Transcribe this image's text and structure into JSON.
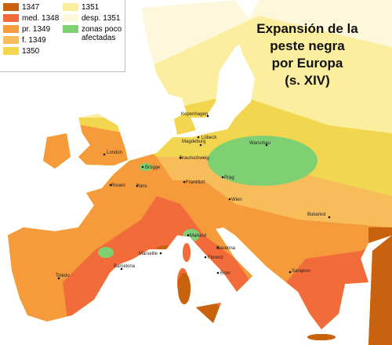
{
  "title": {
    "lines": [
      "Expansión de la",
      "peste negra",
      "por Europa",
      "(s. XIV)"
    ]
  },
  "legend": {
    "items": [
      {
        "label": "1347",
        "color": "#c8620f"
      },
      {
        "label": "med. 1348",
        "color": "#f26b3a"
      },
      {
        "label": "pr. 1349",
        "color": "#f59b3c"
      },
      {
        "label": "f. 1349",
        "color": "#f7bd5a"
      },
      {
        "label": "1350",
        "color": "#f3d64f"
      },
      {
        "label": "1351",
        "color": "#fbee9f"
      },
      {
        "label": "desp. 1351",
        "color": "#fdf8dc"
      },
      {
        "label": "zonas poco afectadas",
        "color": "#7fd073"
      }
    ]
  },
  "cities": [
    "Kopenhagen",
    "Lübeck",
    "London",
    "Magdeburg",
    "Warschau",
    "Braunschweig",
    "Brügge",
    "Rouen",
    "Paris",
    "Frankfurt",
    "Prag",
    "Wien",
    "Bukarest",
    "Mailand",
    "Marseille",
    "Ravenna",
    "Florenz",
    "Rom",
    "Barcelona",
    "Toledo",
    "Sarajevo"
  ]
}
